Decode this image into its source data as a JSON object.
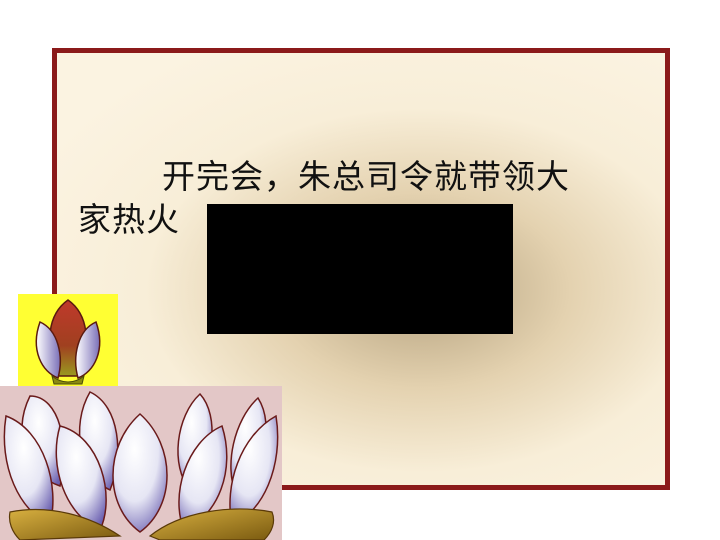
{
  "slide": {
    "paragraph_line1": "开完会，朱总司令就带领大",
    "paragraph_line2": "家热火"
  },
  "colors": {
    "frame_border": "#8b1a1a",
    "frame_fill": "#fbf3e1",
    "video_fill": "#000000",
    "bud_background": "#ffff33",
    "lotus_background": "#e3c7c7"
  },
  "icons": {
    "bud": "lotus-bud-icon",
    "flower": "lotus-flower-icon"
  }
}
